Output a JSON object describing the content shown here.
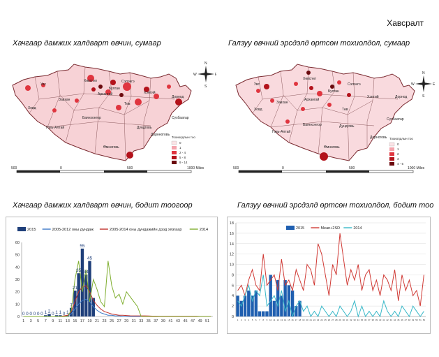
{
  "heading": "Хавсралт",
  "captions": {
    "map_left": "Хачгаар дамжих халдварт өвчин, сумаар",
    "map_right": "Галзуу өвчний эрсдэлд өртсөн тохиолдол, сумаар",
    "chart_left": "Хачгаар дамжих халдварт өвчин, бодит тоогоор",
    "chart_right": "Галзуу өвчний эрсдэлд өртсөн тохиолдол, бодит тоо"
  },
  "map_left": {
    "legend_title": "Тохиолдлын тоо",
    "legend": [
      "0",
      "1",
      "2 - 4",
      "5 - 8",
      "9 - 14"
    ],
    "legend_colors": [
      "#fbe3e6",
      "#f4a3ac",
      "#e0353f",
      "#b3121b",
      "#6b0a0e"
    ],
    "scale": [
      "500",
      "0",
      "500",
      "1000 Miles"
    ],
    "compass": [
      "N",
      "W",
      "E",
      "S"
    ],
    "labels": [
      "Увс",
      "Хөвсгөл",
      "Ховд",
      "Завхан",
      "Архангай",
      "Булган",
      "Сэлэнгэ",
      "Хэнтий",
      "Дорнод",
      "Сүхбаатар",
      "Дундговь",
      "Төв",
      "Говь-Алтай",
      "Баянхонгор",
      "Дорнноговь",
      "Өмнөговь"
    ]
  },
  "map_right": {
    "legend_title": "Тохиолдлын тоо",
    "legend": [
      "0",
      "1",
      "2",
      "3",
      "4 - 5"
    ],
    "legend_colors": [
      "#fbe3e6",
      "#f4a3ac",
      "#e0353f",
      "#b3121b",
      "#6b0a0e"
    ],
    "scale": [
      "500",
      "0",
      "500",
      "1000 Miles"
    ],
    "compass": [
      "N",
      "W",
      "E",
      "S"
    ],
    "labels": [
      "Хөвсгөл",
      "Увс",
      "Завхан",
      "Архангай",
      "Булган",
      "Сэлэнгэ",
      "Хэнтий",
      "Дорнод",
      "Ховд",
      "Төв",
      "Сүхбаатар",
      "Говь-Алтай",
      "Баянхонгор",
      "Дундговь",
      "Дорноговь",
      "Өмнөговь"
    ]
  },
  "chart_data": [
    {
      "type": "bar",
      "title": "Хачгаар дамжих халдварт өвчин, бодит тоогоор",
      "x": [
        1,
        2,
        3,
        4,
        5,
        6,
        7,
        8,
        9,
        10,
        11,
        12,
        13,
        14,
        15,
        16,
        17,
        18,
        19,
        20,
        21,
        22,
        23,
        24,
        25,
        26,
        27,
        28,
        29,
        30,
        31,
        32,
        33,
        34,
        35,
        36,
        37,
        38,
        39,
        40,
        41,
        42,
        43,
        44,
        45,
        46,
        47,
        48,
        49,
        50,
        51,
        52
      ],
      "tick_labels": [
        "1",
        "3",
        "5",
        "7",
        "9",
        "11",
        "13",
        "15",
        "17",
        "19",
        "21",
        "23",
        "25",
        "27",
        "29",
        "31",
        "33",
        "35",
        "37",
        "39",
        "41",
        "43",
        "45",
        "47",
        "49",
        "51"
      ],
      "ylim": [
        0,
        60
      ],
      "yticks": [
        "0",
        "10",
        "20",
        "30",
        "40",
        "50",
        "60"
      ],
      "series": [
        {
          "name": "2015",
          "kind": "bar",
          "color": "#1f3f7a",
          "values": [
            0,
            0,
            0,
            0,
            0,
            0,
            1,
            2,
            0,
            1,
            1,
            0,
            1,
            7,
            21,
            35,
            55,
            34,
            45,
            15,
            0,
            0,
            0,
            0,
            0,
            0,
            0,
            0,
            0,
            0,
            0,
            0,
            0,
            0,
            0,
            0,
            0,
            0,
            0,
            0,
            0,
            0,
            0,
            0,
            0,
            0,
            0,
            0,
            0,
            0,
            0,
            0
          ]
        },
        {
          "name": "2005-2012 оны дундаж",
          "kind": "line",
          "color": "#3a78c8",
          "values": [
            0,
            0,
            0,
            0,
            0,
            0,
            0,
            0,
            0,
            0,
            0,
            0,
            0.5,
            2,
            6,
            10,
            13,
            14,
            12,
            8,
            5,
            3,
            2,
            1,
            1,
            0.5,
            0.5,
            0,
            0,
            0,
            0,
            0,
            0,
            0,
            0,
            0,
            0,
            0,
            0,
            0,
            0,
            0,
            0,
            0,
            0,
            0,
            0,
            0,
            0,
            0,
            0,
            0
          ]
        },
        {
          "name": "2005-2014 оны дундажийн дээд хязгаар",
          "kind": "line",
          "color": "#c0302a",
          "values": [
            0,
            0,
            0,
            0,
            0,
            0,
            0,
            0,
            0,
            0,
            0,
            0.5,
            1,
            4,
            12,
            20,
            24,
            25,
            20,
            13,
            9,
            6,
            4,
            3,
            2,
            1.5,
            1,
            1,
            0.8,
            0.6,
            0.5,
            0.5,
            0.5,
            0.5,
            0.4,
            0.3,
            0.3,
            0.2,
            0.2,
            0.2,
            0.2,
            0.2,
            0.2,
            0.2,
            0.2,
            0.2,
            0.2,
            0.2,
            0.1,
            0.1,
            0.1,
            0.1
          ]
        },
        {
          "name": "2014",
          "kind": "line",
          "color": "#7fae2f",
          "values": [
            0,
            0,
            0,
            0,
            0,
            0,
            0,
            0,
            0,
            0,
            0,
            0,
            0,
            5,
            30,
            45,
            20,
            38,
            12,
            30,
            22,
            12,
            8,
            45,
            25,
            15,
            18,
            10,
            20,
            16,
            12,
            8,
            0,
            0,
            0,
            0,
            0,
            0,
            0,
            0,
            0,
            0,
            0,
            0,
            0,
            0,
            0,
            0,
            0,
            0,
            0,
            0
          ]
        }
      ],
      "data_labels": [
        {
          "x": 1,
          "text": "0"
        },
        {
          "x": 2,
          "text": "0"
        },
        {
          "x": 3,
          "text": "0"
        },
        {
          "x": 4,
          "text": "0"
        },
        {
          "x": 5,
          "text": "0"
        },
        {
          "x": 6,
          "text": "0"
        },
        {
          "x": 7,
          "text": "1"
        },
        {
          "x": 8,
          "text": "2"
        },
        {
          "x": 9,
          "text": "0"
        },
        {
          "x": 10,
          "text": "1"
        },
        {
          "x": 11,
          "text": "1"
        },
        {
          "x": 12,
          "text": "0"
        },
        {
          "x": 13,
          "text": "1"
        },
        {
          "x": 14,
          "text": "7"
        },
        {
          "x": 15,
          "text": "21"
        },
        {
          "x": 16,
          "text": "35"
        },
        {
          "x": 17,
          "text": "55"
        },
        {
          "x": 18,
          "text": "34"
        },
        {
          "x": 19,
          "text": "45"
        }
      ]
    },
    {
      "type": "bar",
      "title": "Галзуу өвчний эрсдэлд өртсөн тохиолдол, бодит тоо",
      "x": [
        1,
        2,
        3,
        4,
        5,
        6,
        7,
        8,
        9,
        10,
        11,
        12,
        13,
        14,
        15,
        16,
        17,
        18,
        19,
        20,
        21,
        22,
        23,
        24,
        25,
        26,
        27,
        28,
        29,
        30,
        31,
        32,
        33,
        34,
        35,
        36,
        37,
        38,
        39,
        40,
        41,
        42,
        43,
        44,
        45,
        46,
        47,
        48,
        49,
        50,
        51,
        52
      ],
      "ylim": [
        0,
        18
      ],
      "yticks": [
        "0",
        "2",
        "4",
        "6",
        "8",
        "10",
        "12",
        "14",
        "16",
        "18"
      ],
      "series": [
        {
          "name": "2015",
          "kind": "bar",
          "color": "#1f5fb0",
          "values": [
            4,
            3,
            4,
            5,
            4,
            5,
            1,
            1,
            1,
            8,
            3,
            7,
            4,
            7,
            6,
            5,
            2,
            3,
            0,
            0,
            0,
            0,
            0,
            0,
            0,
            0,
            0,
            0,
            0,
            0,
            0,
            0,
            0,
            0,
            0,
            0,
            0,
            0,
            0,
            0,
            0,
            0,
            0,
            0,
            0,
            0,
            0,
            0,
            0,
            0,
            0,
            0
          ]
        },
        {
          "name": "Mean+2SD",
          "kind": "line",
          "color": "#d03a35",
          "values": [
            5,
            6,
            4,
            7,
            9,
            6,
            5,
            12,
            6,
            7,
            8,
            5,
            11,
            6,
            7,
            5,
            9,
            7,
            5,
            10,
            9,
            6,
            14,
            12,
            8,
            4,
            10,
            8,
            16,
            11,
            6,
            9,
            7,
            10,
            5,
            8,
            9,
            5,
            7,
            4,
            8,
            7,
            5,
            9,
            3,
            8,
            5,
            7,
            4,
            5,
            2,
            8
          ]
        },
        {
          "name": "2014",
          "kind": "line",
          "color": "#38b8c8",
          "values": [
            3,
            2,
            4,
            6,
            3,
            5,
            4,
            8,
            2,
            3,
            4,
            2,
            5,
            1,
            3,
            0,
            2,
            3,
            1,
            2,
            0,
            1,
            0,
            2,
            1,
            0,
            1,
            0,
            2,
            1,
            0,
            1,
            3,
            0,
            2,
            0,
            1,
            0,
            1,
            0,
            3,
            1,
            0,
            1,
            0,
            2,
            1,
            0,
            2,
            1,
            0,
            1
          ]
        }
      ]
    }
  ]
}
